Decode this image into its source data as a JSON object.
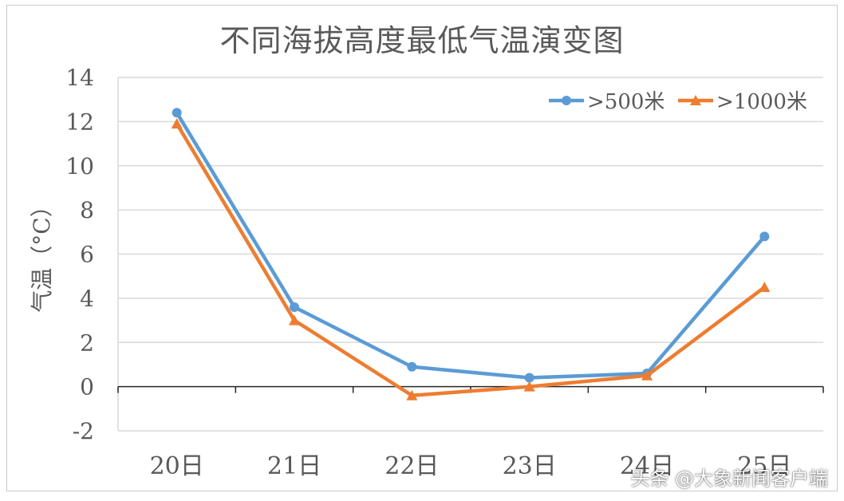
{
  "chart_data": {
    "type": "line",
    "title": "不同海拔高度最低气温演变图",
    "ylabel": "气温（°C）",
    "xlabel": "",
    "categories": [
      "20日",
      "21日",
      "22日",
      "23日",
      "24日",
      "25日"
    ],
    "ylim": [
      -2,
      14
    ],
    "yticks": [
      -2,
      0,
      2,
      4,
      6,
      8,
      10,
      12,
      14
    ],
    "grid": true,
    "legend": "top-right",
    "series": [
      {
        "name": ">500米",
        "values": [
          12.4,
          3.6,
          0.9,
          0.4,
          0.6,
          6.8
        ],
        "color": "#5b9bd5",
        "marker": "circle"
      },
      {
        "name": ">1000米",
        "values": [
          11.9,
          3.0,
          -0.4,
          0.0,
          0.5,
          4.5
        ],
        "color": "#ed7d31",
        "marker": "triangle"
      }
    ]
  },
  "watermark": "头条 @大象新闻客户端"
}
